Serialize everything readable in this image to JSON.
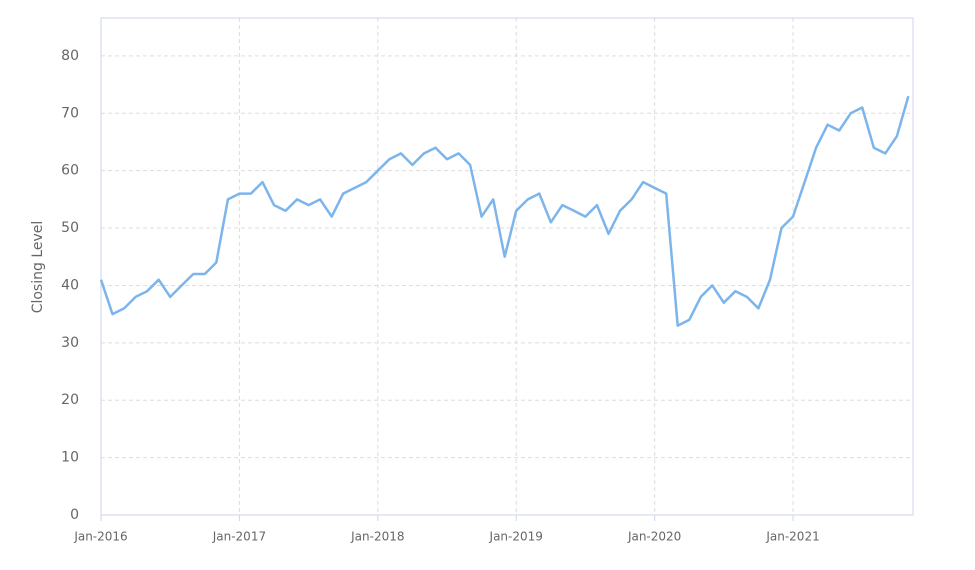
{
  "chart_data": {
    "type": "line",
    "y_label": "Closing Level",
    "x": [
      "2016-01",
      "2016-02",
      "2016-03",
      "2016-04",
      "2016-05",
      "2016-06",
      "2016-07",
      "2016-08",
      "2016-09",
      "2016-10",
      "2016-11",
      "2016-12",
      "2017-01",
      "2017-02",
      "2017-03",
      "2017-04",
      "2017-05",
      "2017-06",
      "2017-07",
      "2017-08",
      "2017-09",
      "2017-10",
      "2017-11",
      "2017-12",
      "2018-01",
      "2018-02",
      "2018-03",
      "2018-04",
      "2018-05",
      "2018-06",
      "2018-07",
      "2018-08",
      "2018-09",
      "2018-10",
      "2018-11",
      "2018-12",
      "2019-01",
      "2019-02",
      "2019-03",
      "2019-04",
      "2019-05",
      "2019-06",
      "2019-07",
      "2019-08",
      "2019-09",
      "2019-10",
      "2019-11",
      "2019-12",
      "2020-01",
      "2020-02",
      "2020-03",
      "2020-04",
      "2020-05",
      "2020-06",
      "2020-07",
      "2020-08",
      "2020-09",
      "2020-10",
      "2020-11",
      "2020-12",
      "2021-01",
      "2021-02",
      "2021-03",
      "2021-04",
      "2021-05",
      "2021-06",
      "2021-07",
      "2021-08",
      "2021-09",
      "2021-10",
      "2021-11"
    ],
    "series": [
      {
        "name": "Closing Level",
        "color": "#7cb5ec",
        "values": [
          41,
          35,
          36,
          38,
          39,
          41,
          38,
          40,
          42,
          42,
          44,
          55,
          56,
          56,
          58,
          54,
          53,
          55,
          54,
          55,
          52,
          56,
          57,
          58,
          60,
          62,
          63,
          61,
          63,
          64,
          62,
          63,
          61,
          52,
          55,
          45,
          53,
          55,
          56,
          51,
          54,
          53,
          52,
          54,
          49,
          53,
          55,
          58,
          57,
          56,
          33,
          34,
          38,
          40,
          37,
          39,
          38,
          36,
          41,
          50,
          52,
          58,
          64,
          68,
          67,
          70,
          71,
          64,
          63,
          66,
          73
        ]
      }
    ],
    "xlim": [
      "2016-01",
      "2021-11"
    ],
    "xticks": [
      {
        "value": "2016-01",
        "label": "Jan-2016"
      },
      {
        "value": "2017-01",
        "label": "Jan-2017"
      },
      {
        "value": "2018-01",
        "label": "Jan-2018"
      },
      {
        "value": "2019-01",
        "label": "Jan-2019"
      },
      {
        "value": "2020-01",
        "label": "Jan-2020"
      },
      {
        "value": "2021-01",
        "label": "Jan-2021"
      }
    ],
    "ylim": [
      0,
      86.6
    ],
    "yticks": [
      0,
      10,
      20,
      30,
      40,
      50,
      60,
      70,
      80
    ],
    "grid": true
  }
}
